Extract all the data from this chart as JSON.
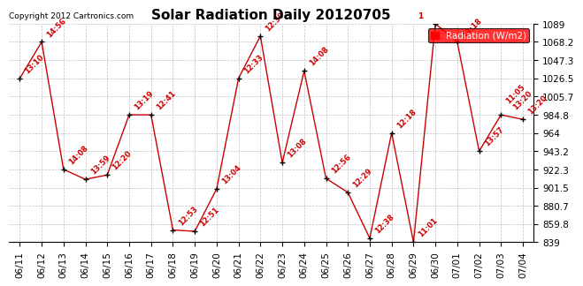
{
  "title": "Solar Radiation Daily 20120705",
  "copyright": "Copyright 2012 Cartronics.com",
  "legend_label": "Radiation (W/m2)",
  "bg_color": "#ffffff",
  "line_color": "#cc0000",
  "marker_color": "#000000",
  "annot_color": "#cc0000",
  "grid_color": "#c0c0c0",
  "ylim_min": 839.0,
  "ylim_max": 1089.0,
  "yticks": [
    839.0,
    859.8,
    880.7,
    901.5,
    922.3,
    943.2,
    964.0,
    984.8,
    1005.7,
    1026.5,
    1047.3,
    1068.2,
    1089.0
  ],
  "dates": [
    "06/11",
    "06/12",
    "06/13",
    "06/14",
    "06/15",
    "06/16",
    "06/17",
    "06/18",
    "06/19",
    "06/20",
    "06/21",
    "06/22",
    "06/23",
    "06/24",
    "06/25",
    "06/26",
    "06/27",
    "06/28",
    "06/29",
    "06/30",
    "07/01",
    "07/02",
    "07/03",
    "07/04"
  ],
  "values": [
    1026.5,
    1068.2,
    922.3,
    911.0,
    916.0,
    984.8,
    984.8,
    853.0,
    851.5,
    900.0,
    1026.5,
    1075.0,
    930.0,
    1035.0,
    912.0,
    896.0,
    843.5,
    964.0,
    839.0,
    1089.0,
    1068.2,
    943.2,
    984.8,
    979.5
  ],
  "annots": [
    "13:10",
    "14:56",
    "14:08",
    "13:59",
    "12:20",
    "13:19",
    "12:41",
    "12:53",
    "12:51",
    "13:04",
    "12:33",
    "12:30",
    "13:08",
    "14:08",
    "12:56",
    "12:29",
    "12:38",
    "12:18",
    "11:01",
    "1",
    "13:18",
    "13:57",
    "11:05\n13:20",
    "13:20"
  ]
}
